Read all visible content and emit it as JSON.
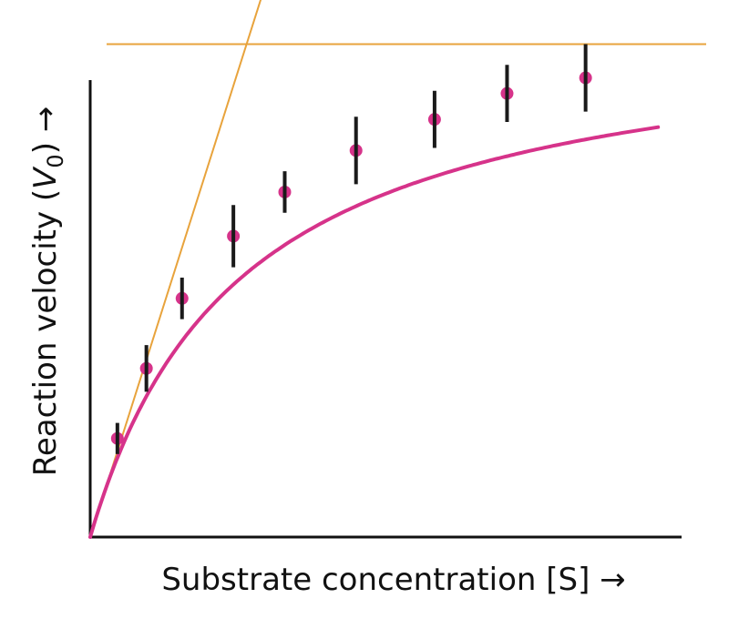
{
  "chart_data": {
    "type": "scatter",
    "title": "",
    "xlabel": "Substrate concentration [S] →",
    "ylabel_parts": {
      "before": "Reaction velocity (",
      "variable": "V",
      "subscript": "0",
      "after": ") →"
    },
    "xlim": [
      0,
      1
    ],
    "ylim": [
      0,
      1
    ],
    "grid": false,
    "legend": "none",
    "curve": {
      "model": "michaelis-menten",
      "vmax": 1.0,
      "km": 0.25
    },
    "initial_slope_line": {
      "slope": 3.67
    },
    "vmax_line": {
      "y": 0.95
    },
    "points": [
      {
        "x": 0.045,
        "y": 0.19,
        "err": 0.03
      },
      {
        "x": 0.093,
        "y": 0.325,
        "err": 0.045
      },
      {
        "x": 0.152,
        "y": 0.46,
        "err": 0.04
      },
      {
        "x": 0.237,
        "y": 0.58,
        "err": 0.06
      },
      {
        "x": 0.322,
        "y": 0.665,
        "err": 0.04
      },
      {
        "x": 0.44,
        "y": 0.745,
        "err": 0.065
      },
      {
        "x": 0.57,
        "y": 0.805,
        "err": 0.055
      },
      {
        "x": 0.69,
        "y": 0.855,
        "err": 0.055
      },
      {
        "x": 0.82,
        "y": 0.885,
        "err": 0.065
      }
    ],
    "colors": {
      "curve": "#d6338a",
      "points": "#d6338a",
      "error_bars": "#1a1a1a",
      "reference_lines": "#e8a33c",
      "axes": "#111111"
    }
  }
}
